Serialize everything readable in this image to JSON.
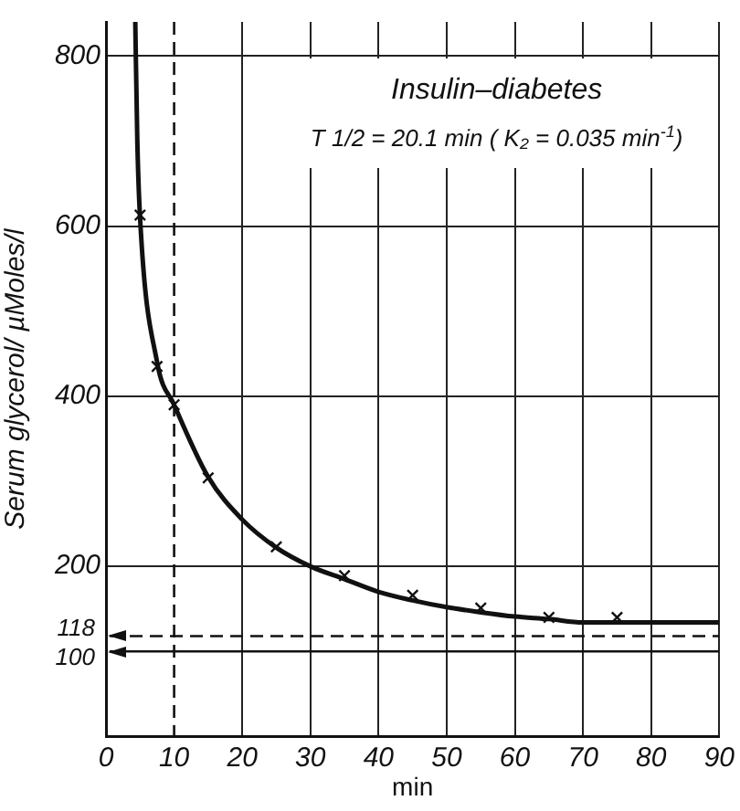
{
  "chart_data": {
    "type": "scatter",
    "xlabel": "min",
    "ylabel": "Serum glycerol/ µMoles/l",
    "annotations": [
      "Insulin–diabetes",
      "T 1/2 = 20.1 min ( K₂ = 0.035 min$^{-1}$)"
    ],
    "series": [
      {
        "color": "#111111",
        "marker": "cross",
        "x": [
          5,
          7.5,
          10,
          15,
          25,
          35,
          45,
          55,
          65,
          75
        ],
        "values": [
          613,
          435,
          390,
          304,
          223,
          189,
          166,
          151,
          140,
          140
        ]
      },
      {
        "type": "line",
        "color": "#111111",
        "marker": "none",
        "line_style": "solid",
        "x": [
          4.3,
          4.6,
          5,
          7.5,
          10,
          15,
          20,
          25,
          30,
          35,
          40,
          45,
          50,
          55,
          60,
          65,
          70,
          80,
          90
        ],
        "values": [
          840,
          700,
          610,
          440,
          390,
          305,
          255,
          222,
          200,
          185,
          170,
          160,
          152,
          146,
          141,
          138,
          134,
          134,
          134
        ]
      }
    ],
    "xlim": [
      0,
      90
    ],
    "xticks": [
      0,
      10,
      20,
      30,
      40,
      50,
      60,
      70,
      80,
      90
    ],
    "ylim": [
      0,
      840
    ],
    "yticks": [
      200,
      400,
      600,
      800
    ],
    "grid": true,
    "legend": false,
    "ref_lines": [
      {
        "axis": "y",
        "value": 118,
        "label": "118",
        "line_style": "dashed"
      },
      {
        "axis": "y",
        "value": 100,
        "label": "100",
        "line_style": "solid"
      },
      {
        "axis": "x",
        "value": 10,
        "line_style": "dashed"
      }
    ]
  }
}
